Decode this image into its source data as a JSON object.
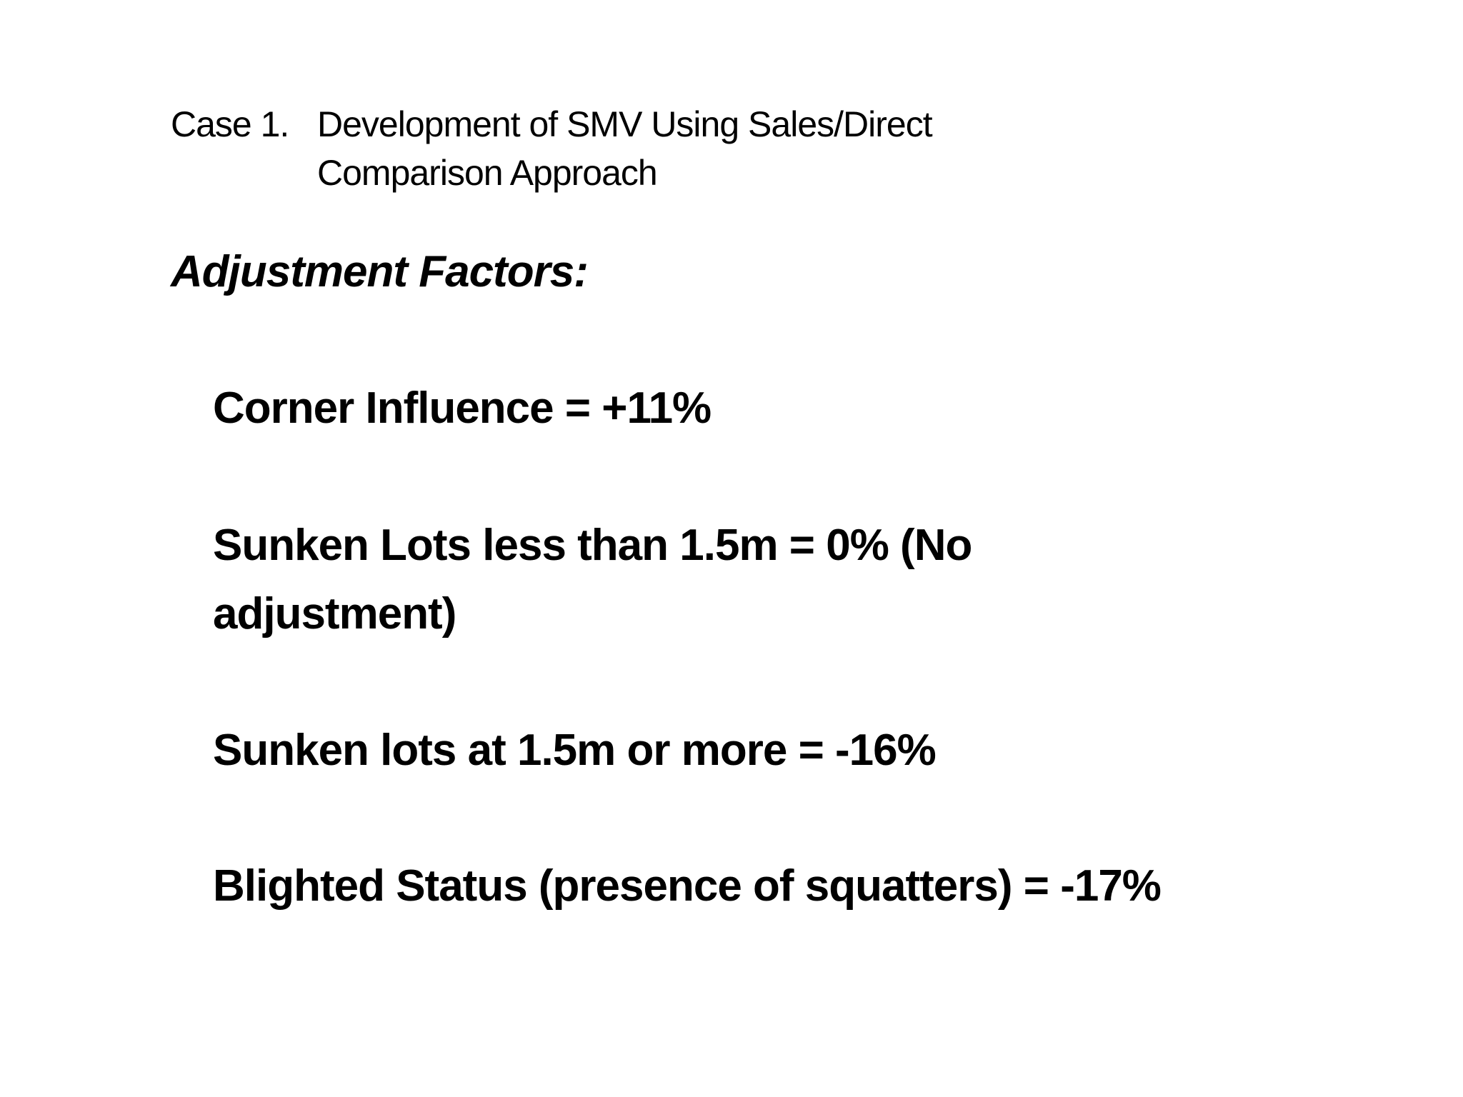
{
  "slide": {
    "title": {
      "label": "Case 1.",
      "text": "Development of SMV Using Sales/Direct Comparison Approach"
    },
    "heading": "Adjustment Factors:",
    "items": [
      "Corner Influence =  +11%",
      "Sunken Lots less than 1.5m = 0% (No adjustment)",
      "Sunken lots at 1.5m or more =  -16%",
      "Blighted Status (presence of squatters) = -17%"
    ]
  }
}
